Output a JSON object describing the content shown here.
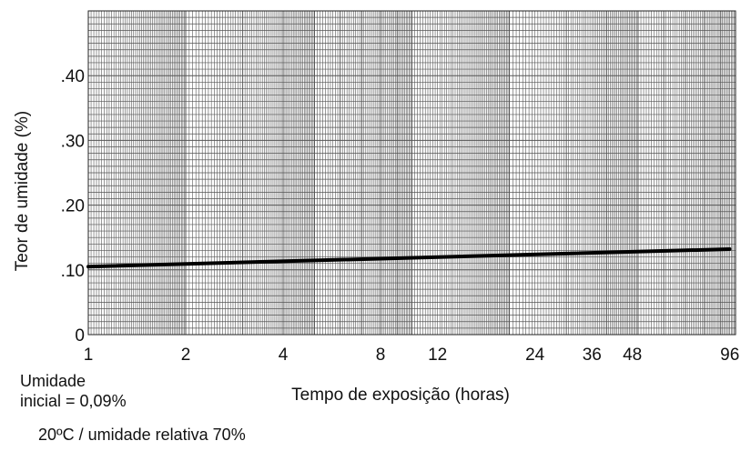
{
  "chart_data": {
    "type": "line",
    "xlabel": "Tempo de exposição (horas)",
    "ylabel": "Teor de umidade (%)",
    "x_scale": "log",
    "x_ticks": [
      1,
      2,
      4,
      8,
      12,
      24,
      36,
      48,
      96
    ],
    "x_tick_labels": [
      "1",
      "2",
      "4",
      "8",
      "12",
      "24",
      "36",
      "48",
      "96"
    ],
    "xlim": [
      1,
      100
    ],
    "y_ticks": [
      0,
      0.1,
      0.2,
      0.3,
      0.4
    ],
    "y_tick_labels": [
      "0",
      ".10",
      ".20",
      ".30",
      ".40"
    ],
    "ylim": [
      0,
      0.5
    ],
    "grid": true,
    "series": [
      {
        "x": [
          1,
          96
        ],
        "y": [
          0.105,
          0.132
        ]
      }
    ]
  },
  "notes": {
    "initial_line1": "Umidade",
    "initial_line2": "inicial = 0,09%",
    "conditions": "20ºC / umidade relativa 70%"
  },
  "colors": {
    "grid": "#555555",
    "line": "#000000",
    "background": "#ffffff"
  }
}
